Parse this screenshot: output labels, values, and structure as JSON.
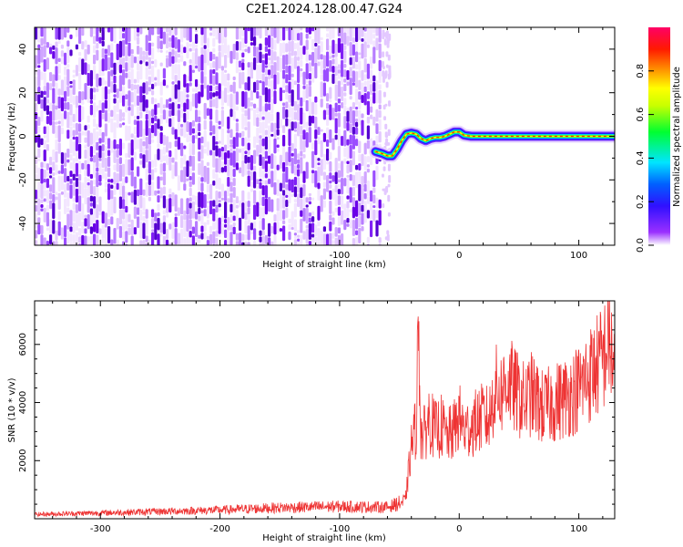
{
  "figure": {
    "title": "C2E1.2024.128.00.47.G24"
  },
  "chart_data": [
    {
      "type": "heatmap",
      "title": "C2E1.2024.128.00.47.G24",
      "xlabel": "Height of straight line (km)",
      "ylabel": "Frequency (Hz)",
      "xlim": [
        -355,
        130
      ],
      "ylim": [
        -50,
        50
      ],
      "xticks": [
        -300,
        -200,
        -100,
        0,
        100
      ],
      "yticks": [
        -40,
        -20,
        0,
        20,
        40
      ],
      "noise_region_x": [
        -355,
        -65
      ],
      "signal_trace": {
        "x": [
          -70,
          -64,
          -60,
          -56,
          -52,
          -48,
          -44,
          -40,
          -36,
          -32,
          -28,
          -24,
          -20,
          -16,
          -12,
          -8,
          -4,
          0,
          4,
          10,
          20,
          40,
          60,
          80,
          100,
          120,
          130
        ],
        "y": [
          -7,
          -8,
          -9,
          -9,
          -6,
          -2,
          1,
          1.5,
          1,
          -1,
          -2,
          -1,
          -0.5,
          -0.5,
          0,
          1,
          2,
          2,
          0.5,
          0,
          0,
          0,
          0,
          0,
          0,
          0,
          0
        ]
      },
      "colorbar": {
        "label": "Normalized spectral amplitude",
        "range": [
          0,
          1
        ],
        "ticks": [
          0.0,
          0.2,
          0.4,
          0.6,
          0.8
        ],
        "colormap": [
          "#ffffff",
          "#8a00ff",
          "#0000ff",
          "#00e5ff",
          "#00ff00",
          "#ffff00",
          "#ff9900",
          "#ff0000",
          "#ff0066"
        ]
      },
      "grid": false,
      "legend": "none"
    },
    {
      "type": "line",
      "title": "",
      "xlabel": "Height of straight line (km)",
      "ylabel": "SNR (10 * v/v)",
      "xlim": [
        -355,
        130
      ],
      "ylim": [
        0,
        7500
      ],
      "xticks": [
        -300,
        -200,
        -100,
        0,
        100
      ],
      "yticks": [
        2000,
        4000,
        6000
      ],
      "color": "#ee3333",
      "series": [
        {
          "name": "",
          "x": [
            -355,
            -300,
            -250,
            -200,
            -150,
            -100,
            -60,
            -45,
            -40,
            -36,
            -34,
            -32,
            -30,
            -25,
            -20,
            -15,
            -10,
            -5,
            0,
            5,
            10,
            20,
            25,
            30,
            35,
            40,
            50,
            55,
            60,
            70,
            80,
            90,
            100,
            110,
            120,
            125,
            130
          ],
          "y": [
            150,
            200,
            250,
            300,
            380,
            420,
            400,
            600,
            2500,
            3200,
            6800,
            3000,
            2800,
            3500,
            3000,
            3200,
            2800,
            3000,
            3500,
            3000,
            3200,
            3500,
            3400,
            4500,
            4300,
            4800,
            4200,
            4000,
            4300,
            3800,
            4000,
            4200,
            4500,
            5000,
            5500,
            6200,
            5200
          ]
        }
      ],
      "grid": false,
      "legend": "none"
    }
  ]
}
